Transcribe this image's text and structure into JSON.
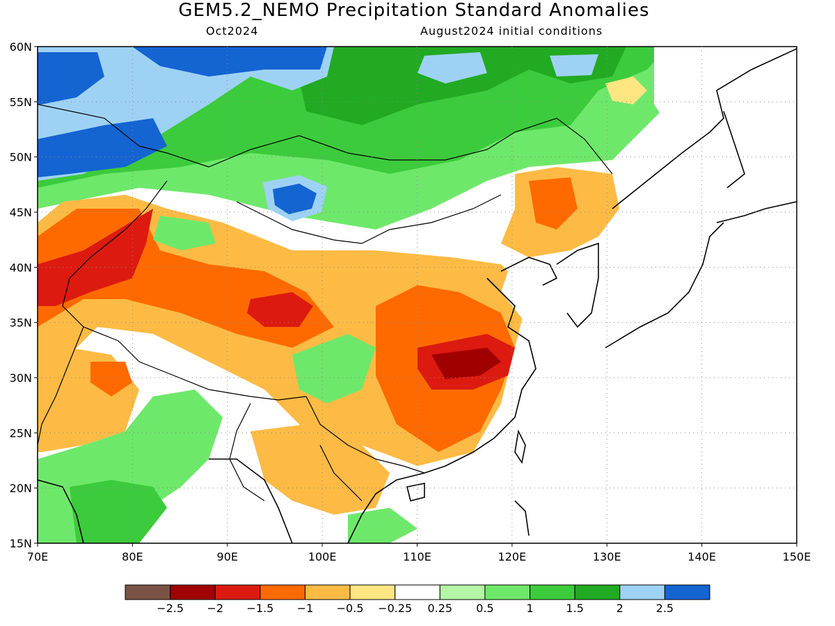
{
  "title": "GEM5.2_NEMO Precipitation Standard Anomalies",
  "valid_month": "Oct2024",
  "initial_conditions": "August2024 initial conditions",
  "axes": {
    "x_ticks": [
      "70E",
      "80E",
      "90E",
      "100E",
      "110E",
      "120E",
      "130E",
      "140E",
      "150E"
    ],
    "y_ticks": [
      "15N",
      "20N",
      "25N",
      "30N",
      "35N",
      "40N",
      "45N",
      "50N",
      "55N",
      "60N"
    ],
    "grid": "dotted"
  },
  "colorbar": {
    "labels": [
      "−2.5",
      "−2",
      "−1.5",
      "−1",
      "−0.5",
      "−0.25",
      "0.25",
      "0.5",
      "1",
      "1.5",
      "2",
      "2.5"
    ],
    "colors": [
      "#7a5346",
      "#a00000",
      "#dc1a10",
      "#ff6a00",
      "#fdbb45",
      "#fee682",
      "#ffffff",
      "#b4f5a6",
      "#6ee86a",
      "#3ccb3c",
      "#22aa22",
      "#9ed2f5",
      "#1464d2"
    ]
  }
}
